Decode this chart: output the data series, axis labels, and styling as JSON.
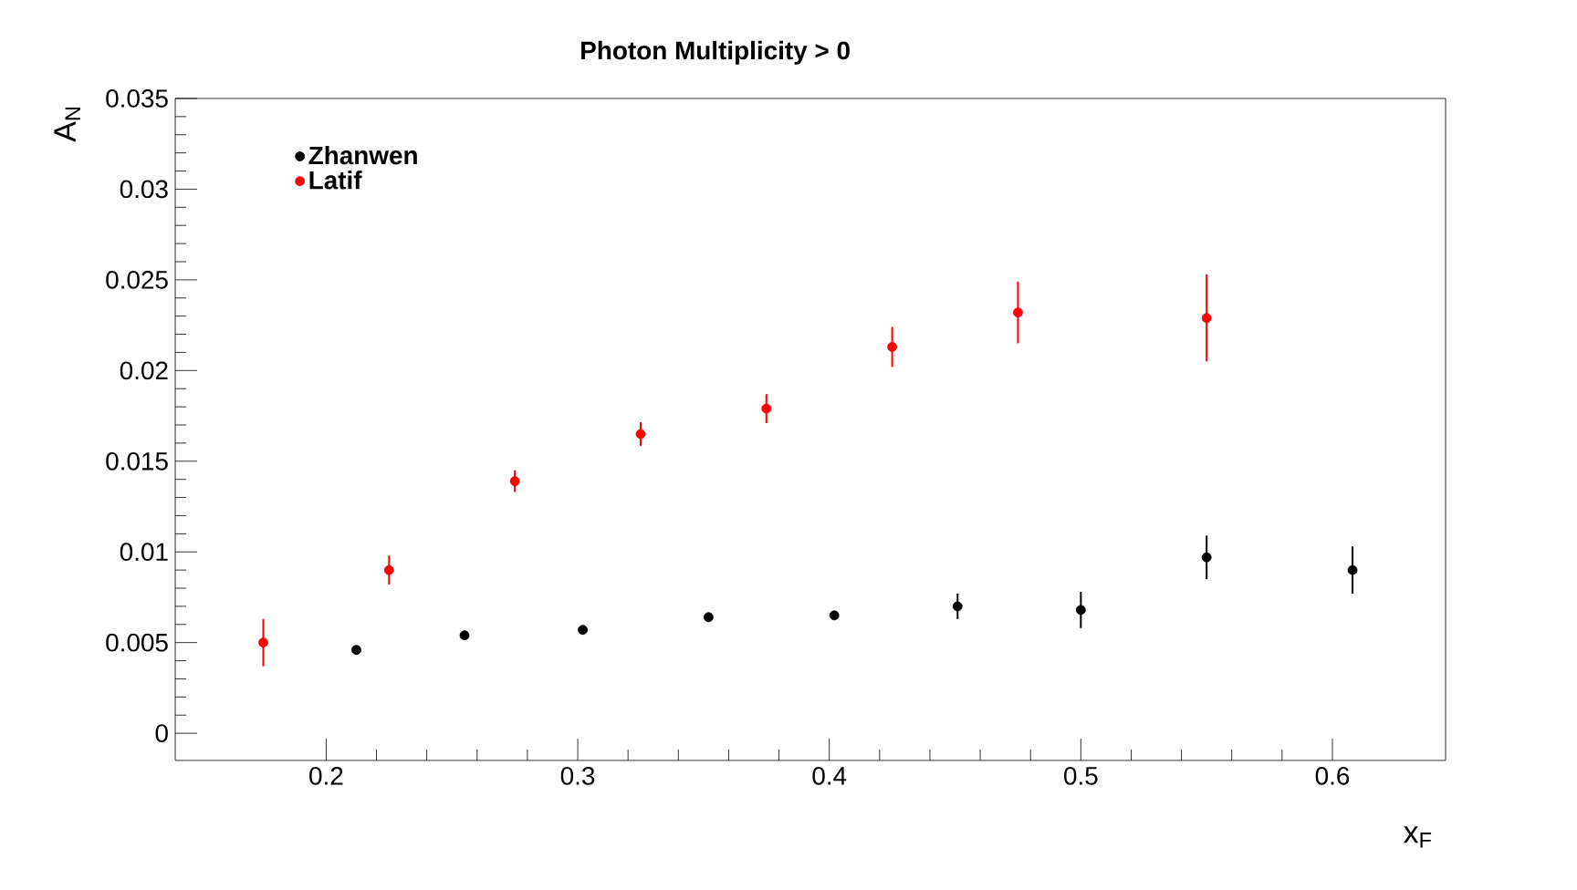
{
  "chart_data": {
    "type": "scatter",
    "title": "Photon Multiplicity > 0",
    "xlabel": "x$_{F}$",
    "ylabel": "A$_{N}$",
    "xlim": [
      0.14,
      0.645
    ],
    "ylim": [
      -0.0015,
      0.035
    ],
    "xticks": [
      0.2,
      0.3,
      0.4,
      0.5,
      0.6
    ],
    "yticks": [
      0,
      0.005,
      0.01,
      0.015,
      0.02,
      0.025,
      0.03,
      0.035
    ],
    "grid": false,
    "legend": "top left",
    "marker": "circle",
    "series": [
      {
        "name": "Zhanwen",
        "color": "#000000",
        "x": [
          0.212,
          0.255,
          0.302,
          0.352,
          0.402,
          0.451,
          0.5,
          0.55,
          0.608
        ],
        "values": [
          0.0046,
          0.0054,
          0.0057,
          0.0064,
          0.0065,
          0.007,
          0.0068,
          0.0097,
          0.009
        ],
        "errors": [
          null,
          null,
          null,
          null,
          null,
          0.0007,
          0.001,
          0.0012,
          0.0013
        ]
      },
      {
        "name": "Latif",
        "color": "#ff0000",
        "x": [
          0.175,
          0.225,
          0.275,
          0.325,
          0.375,
          0.425,
          0.475,
          0.55
        ],
        "values": [
          0.005,
          0.009,
          0.0139,
          0.0165,
          0.0179,
          0.0213,
          0.0232,
          0.0229
        ],
        "errors": [
          0.0013,
          0.0008,
          0.0006,
          0.00065,
          0.0008,
          0.0011,
          0.0017,
          0.0024
        ]
      }
    ]
  }
}
